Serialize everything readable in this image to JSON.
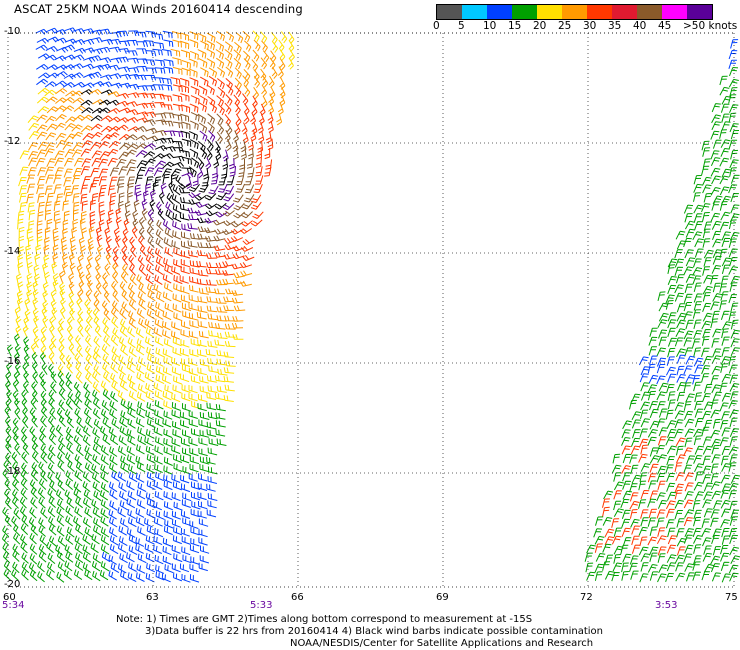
{
  "title": "ASCAT 25KM NOAA Winds 20160414 descending",
  "legend": {
    "colors": [
      "#555555",
      "#00c8ff",
      "#0040ff",
      "#00a000",
      "#ffe000",
      "#ff9a00",
      "#ff3800",
      "#e01a30",
      "#8a5a2a",
      "#ff00ff",
      "#5a0099"
    ],
    "ticks": [
      "0",
      "5",
      "10",
      "15",
      "20",
      "25",
      "30",
      "35",
      "40",
      "45",
      ">50 knots"
    ]
  },
  "latitude_labels": [
    "-10",
    "-12",
    "-14",
    "-16",
    "-18",
    "-20"
  ],
  "longitude_labels": [
    "60",
    "63",
    "66",
    "69",
    "72",
    "75"
  ],
  "time_labels": [
    "5:34",
    "5:33",
    "3:53"
  ],
  "notes": {
    "line1": "Note: 1) Times are GMT 2)Times along bottom correspond to measurement at -15S",
    "line2": "3)Data buffer is 22 hrs from 20160414 4) Black wind barbs indicate possible contamination",
    "line3": "NOAA/NESDIS/Center for Satellite Applications and Research"
  }
}
